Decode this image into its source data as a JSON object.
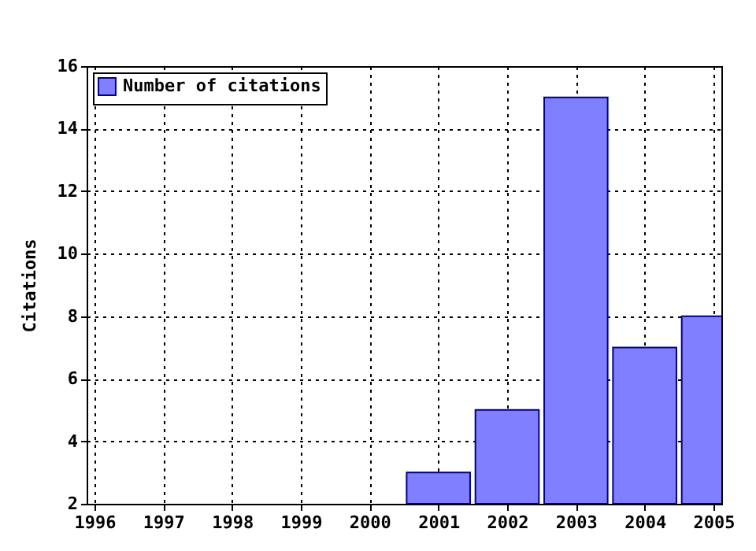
{
  "chart_data": {
    "type": "bar",
    "ylabel": "Citations",
    "x": [
      2001,
      2002,
      2003,
      2004,
      2005
    ],
    "series": [
      {
        "name": "Number of citations",
        "color": "#7f7fff",
        "values": [
          3,
          5,
          15,
          7,
          8
        ]
      }
    ],
    "xlim": [
      1996,
      2005
    ],
    "xticks": [
      1996,
      1997,
      1998,
      1999,
      2000,
      2001,
      2002,
      2003,
      2004,
      2005
    ],
    "ylim": [
      2,
      16
    ],
    "yticks": [
      2,
      4,
      6,
      8,
      10,
      12,
      14,
      16
    ],
    "grid": true,
    "legend": "top left"
  }
}
